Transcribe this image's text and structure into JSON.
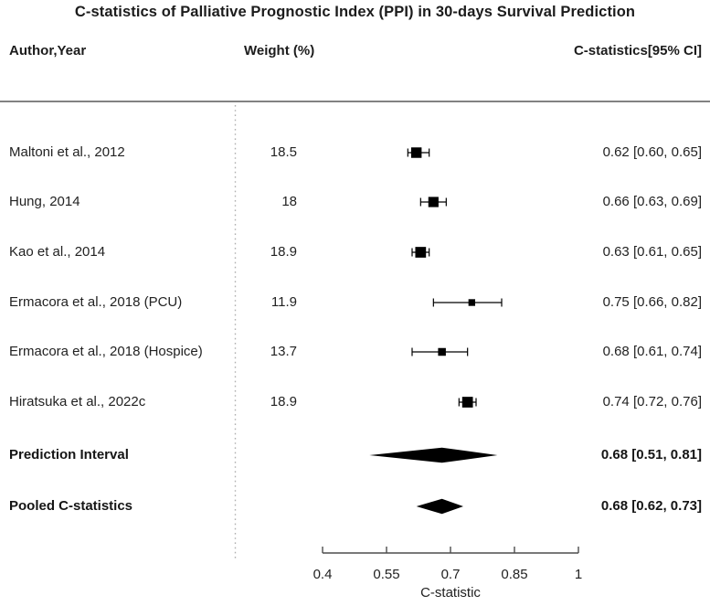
{
  "chart_data": {
    "type": "forest",
    "title": "C-statistics of Palliative Prognostic Index (PPI) in 30-days Survival Prediction",
    "xlabel": "C-statistic",
    "columns": {
      "author": "Author,Year",
      "weight": "Weight (%)",
      "ci": "C-statistics[95% CI]"
    },
    "axis": {
      "min": 0.4,
      "max": 1,
      "ticks": [
        0.4,
        0.55,
        0.7,
        0.85,
        1
      ],
      "tick_labels": [
        "0.4",
        "0.55",
        "0.7",
        "0.85",
        "1"
      ]
    },
    "studies": [
      {
        "label": "Maltoni et al., 2012",
        "weight": "18.5",
        "estimate": 0.62,
        "ci_lower": 0.6,
        "ci_upper": 0.65,
        "display": "0.62 [0.60, 0.65]"
      },
      {
        "label": "Hung, 2014",
        "weight": "18",
        "estimate": 0.66,
        "ci_lower": 0.63,
        "ci_upper": 0.69,
        "display": "0.66 [0.63, 0.69]"
      },
      {
        "label": "Kao et al., 2014",
        "weight": "18.9",
        "estimate": 0.63,
        "ci_lower": 0.61,
        "ci_upper": 0.65,
        "display": "0.63 [0.61, 0.65]"
      },
      {
        "label": "Ermacora et al., 2018 (PCU)",
        "weight": "11.9",
        "estimate": 0.75,
        "ci_lower": 0.66,
        "ci_upper": 0.82,
        "display": "0.75 [0.66, 0.82]"
      },
      {
        "label": "Ermacora et al., 2018 (Hospice)",
        "weight": "13.7",
        "estimate": 0.68,
        "ci_lower": 0.61,
        "ci_upper": 0.74,
        "display": "0.68 [0.61, 0.74]"
      },
      {
        "label": "Hiratsuka et al., 2022c",
        "weight": "18.9",
        "estimate": 0.74,
        "ci_lower": 0.72,
        "ci_upper": 0.76,
        "display": "0.74 [0.72, 0.76]"
      }
    ],
    "summaries": [
      {
        "label": "Prediction Interval",
        "estimate": 0.68,
        "ci_lower": 0.51,
        "ci_upper": 0.81,
        "display": "0.68 [0.51, 0.81]"
      },
      {
        "label": "Pooled C-statistics",
        "estimate": 0.68,
        "ci_lower": 0.62,
        "ci_upper": 0.73,
        "display": "0.68 [0.62, 0.73]"
      }
    ],
    "colors": {
      "marker": "#000000",
      "text": "#222222",
      "header_rule": "#828282",
      "separator_dots": "#b0b0b0",
      "axis": "#4d4d4d"
    },
    "legend": "none",
    "grid": "off"
  }
}
